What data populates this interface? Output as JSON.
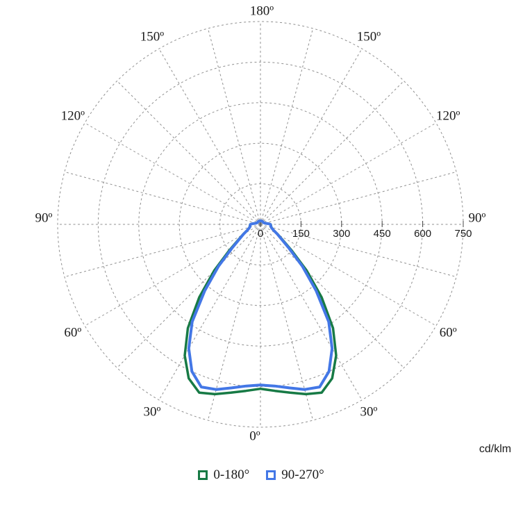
{
  "chart_data": {
    "type": "line",
    "subtype": "polar-photometric-distribution",
    "title": "",
    "units_label": "cd/klm",
    "grid_color": "#909090",
    "radial_axis": {
      "min": 0,
      "max": 750,
      "step": 150,
      "tick_labels": [
        "0",
        "150",
        "300",
        "450",
        "600",
        "750"
      ]
    },
    "angle_axis": {
      "grid_step_deg": 15,
      "labels_deg": [
        0,
        30,
        60,
        90,
        120,
        150,
        180
      ],
      "label_texts": [
        "0º",
        "30º",
        "60º",
        "90º",
        "120º",
        "150º",
        "180º"
      ],
      "mirrored_both_sides": true
    },
    "angles_deg": [
      0,
      5,
      10,
      15,
      20,
      25,
      30,
      35,
      40,
      45,
      50,
      55,
      60,
      65,
      70,
      75,
      80,
      85,
      90,
      95,
      100,
      110,
      120,
      130,
      140,
      150,
      160,
      170,
      180
    ],
    "series": [
      {
        "name": "0-180°",
        "color": "#177a45",
        "values": [
          608,
          618,
          632,
          650,
          662,
          628,
          560,
          468,
          352,
          242,
          152,
          100,
          74,
          56,
          47,
          42,
          40,
          39,
          38,
          30,
          22,
          16,
          13,
          13,
          13,
          13,
          13,
          13,
          13
        ]
      },
      {
        "name": "90-270°",
        "color": "#4377e6",
        "values": [
          594,
          600,
          614,
          632,
          640,
          600,
          530,
          440,
          320,
          220,
          138,
          95,
          72,
          55,
          46,
          41,
          39,
          38,
          37,
          29,
          21,
          15,
          13,
          13,
          13,
          13,
          13,
          13,
          13
        ]
      }
    ],
    "legend": {
      "position": "bottom",
      "entries": [
        {
          "label": "0-180°",
          "color": "#177a45"
        },
        {
          "label": "90-270°",
          "color": "#4377e6"
        }
      ]
    }
  }
}
